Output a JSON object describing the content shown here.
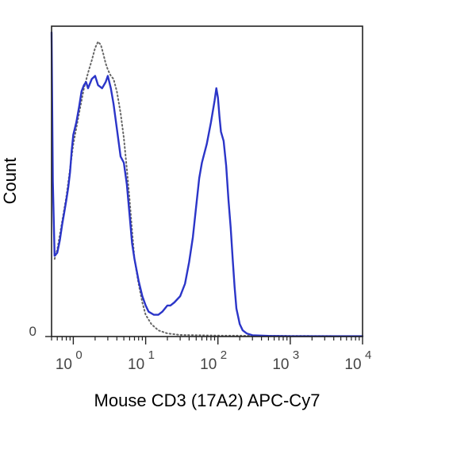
{
  "chart_data": {
    "type": "line",
    "ylabel": "Count",
    "xlabel": "Mouse CD3 (17A2) APC-Cy7",
    "x_scale": "log",
    "xlim": [
      0.5,
      10000
    ],
    "ylim": [
      0,
      100
    ],
    "x_ticks": [
      {
        "base": "10",
        "exp": "0",
        "value": 1
      },
      {
        "base": "10",
        "exp": "1",
        "value": 10
      },
      {
        "base": "10",
        "exp": "2",
        "value": 100
      },
      {
        "base": "10",
        "exp": "3",
        "value": 1000
      },
      {
        "base": "10",
        "exp": "4",
        "value": 10000
      }
    ],
    "y_ticks": [
      {
        "label": "0",
        "value": 0
      }
    ],
    "grid": false,
    "series": [
      {
        "style": "solid",
        "color": "#2b35c8",
        "points": [
          [
            0.5,
            98
          ],
          [
            0.52,
            50
          ],
          [
            0.55,
            26
          ],
          [
            0.6,
            27
          ],
          [
            0.65,
            31
          ],
          [
            0.7,
            36
          ],
          [
            0.75,
            40
          ],
          [
            0.8,
            44
          ],
          [
            0.85,
            48
          ],
          [
            0.9,
            53
          ],
          [
            0.95,
            60
          ],
          [
            1.0,
            65
          ],
          [
            1.1,
            69
          ],
          [
            1.2,
            74
          ],
          [
            1.3,
            79
          ],
          [
            1.4,
            81
          ],
          [
            1.5,
            82
          ],
          [
            1.6,
            80
          ],
          [
            1.8,
            83
          ],
          [
            2.0,
            84
          ],
          [
            2.2,
            81
          ],
          [
            2.5,
            80
          ],
          [
            2.8,
            82
          ],
          [
            3.0,
            84
          ],
          [
            3.3,
            80
          ],
          [
            3.6,
            75
          ],
          [
            4.0,
            67
          ],
          [
            4.5,
            58
          ],
          [
            5.0,
            56
          ],
          [
            5.5,
            49
          ],
          [
            6.0,
            39
          ],
          [
            6.5,
            30
          ],
          [
            7.0,
            25
          ],
          [
            8.0,
            18
          ],
          [
            9.0,
            13
          ],
          [
            10.0,
            10
          ],
          [
            11.0,
            8
          ],
          [
            13.0,
            7
          ],
          [
            15.0,
            7
          ],
          [
            17.0,
            8
          ],
          [
            20.0,
            10
          ],
          [
            22.0,
            10
          ],
          [
            25.0,
            11
          ],
          [
            30.0,
            13
          ],
          [
            35.0,
            17
          ],
          [
            40.0,
            24
          ],
          [
            45.0,
            32
          ],
          [
            50.0,
            42
          ],
          [
            55.0,
            51
          ],
          [
            60.0,
            56
          ],
          [
            70.0,
            62
          ],
          [
            80.0,
            69
          ],
          [
            90.0,
            76
          ],
          [
            95.0,
            80
          ],
          [
            100.0,
            77
          ],
          [
            105.0,
            71
          ],
          [
            110.0,
            66
          ],
          [
            120.0,
            63
          ],
          [
            130.0,
            55
          ],
          [
            140.0,
            44
          ],
          [
            150.0,
            35
          ],
          [
            160.0,
            25
          ],
          [
            170.0,
            16
          ],
          [
            180.0,
            9
          ],
          [
            200.0,
            4
          ],
          [
            220.0,
            2
          ],
          [
            250.0,
            1
          ],
          [
            300.0,
            0.4
          ],
          [
            500.0,
            0.2
          ],
          [
            1000.0,
            0.1
          ],
          [
            10000.0,
            0.1
          ]
        ]
      },
      {
        "style": "dotted",
        "color": "#666666",
        "points": [
          [
            0.55,
            25
          ],
          [
            0.6,
            28
          ],
          [
            0.7,
            37
          ],
          [
            0.8,
            45
          ],
          [
            0.9,
            54
          ],
          [
            1.0,
            62
          ],
          [
            1.2,
            72
          ],
          [
            1.4,
            80
          ],
          [
            1.6,
            85
          ],
          [
            1.8,
            89
          ],
          [
            2.0,
            93
          ],
          [
            2.2,
            95
          ],
          [
            2.4,
            94
          ],
          [
            2.6,
            91
          ],
          [
            2.8,
            88
          ],
          [
            3.0,
            86
          ],
          [
            3.3,
            84
          ],
          [
            3.6,
            83
          ],
          [
            4.0,
            79
          ],
          [
            4.5,
            72
          ],
          [
            5.0,
            64
          ],
          [
            5.5,
            54
          ],
          [
            6.0,
            44
          ],
          [
            6.5,
            34
          ],
          [
            7.0,
            25
          ],
          [
            8.0,
            17
          ],
          [
            9.0,
            11
          ],
          [
            10.0,
            7
          ],
          [
            12.0,
            4
          ],
          [
            15.0,
            2
          ],
          [
            20.0,
            1
          ],
          [
            30.0,
            0.5
          ],
          [
            100.0,
            0.3
          ],
          [
            1000.0,
            0.2
          ],
          [
            10000.0,
            0.1
          ]
        ]
      }
    ]
  }
}
